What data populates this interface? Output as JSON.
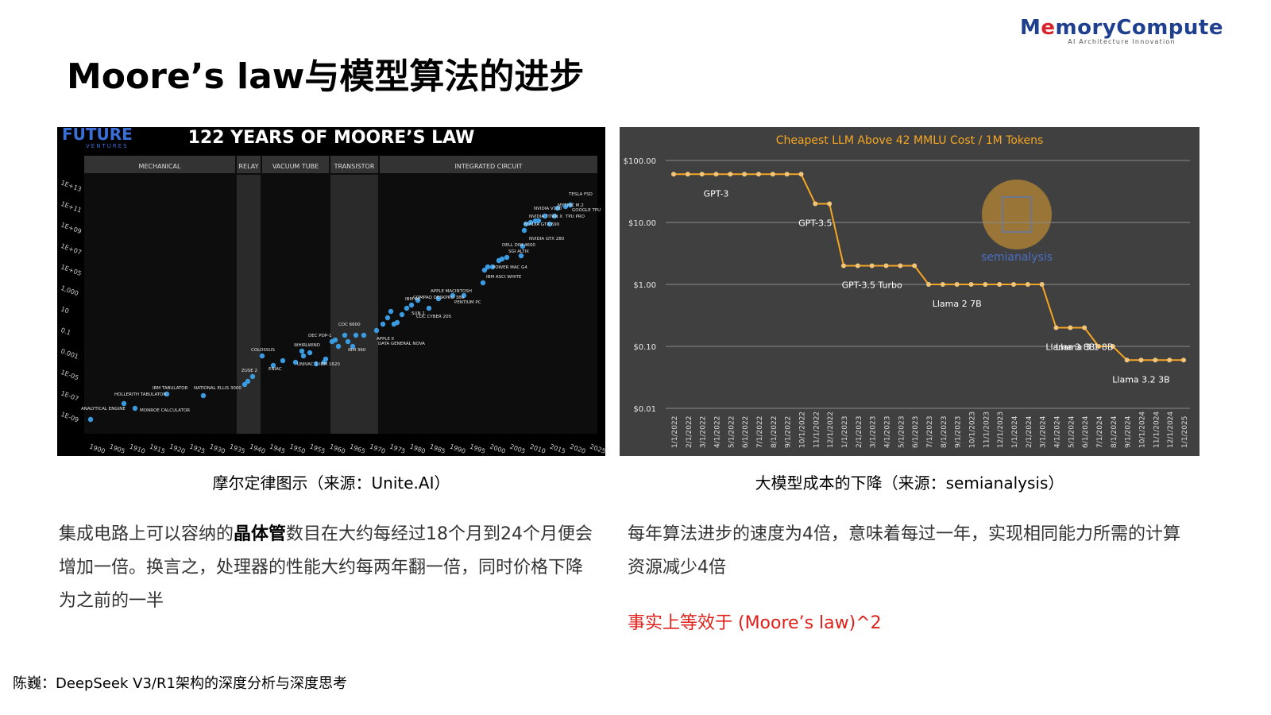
{
  "logo": {
    "prefix": "M",
    "accent": "e",
    "rest": "moryCompute",
    "tagline": "AI Architecture Innovation"
  },
  "title": "Moore’s law与模型算法的进步",
  "left_figure": {
    "brand": "FUTURE",
    "brand_sub": "VENTURES",
    "heading": "122 YEARS OF MOORE’S LAW",
    "eras": [
      "MECHANICAL",
      "RELAY",
      "VACUUM TUBE",
      "TRANSISTOR",
      "INTEGRATED CIRCUIT"
    ],
    "y_ticks": [
      "1E+13",
      "1E+11",
      "1E+09",
      "1E+07",
      "1E+05",
      "1,000",
      "10",
      "0.1",
      "0.001",
      "1E-05",
      "1E-07",
      "1E-09"
    ],
    "x_ticks": [
      "1900",
      "1905",
      "1910",
      "1915",
      "1920",
      "1925",
      "1930",
      "1935",
      "1940",
      "1945",
      "1950",
      "1955",
      "1960",
      "1965",
      "1970",
      "1975",
      "1980",
      "1985",
      "1990",
      "1995",
      "2000",
      "2005",
      "2010",
      "2015",
      "2020",
      "2025"
    ],
    "labels": [
      "ANALYTICAL ENGINE",
      "HOLLERITH TABULATOR",
      "MONROE CALCULATOR",
      "IBM TABULATOR",
      "NATIONAL ELLIS 3000",
      "ZUSE 2",
      "COLOSSUS",
      "ENIAC",
      "WHIRLWIND",
      "UNIVAC 1",
      "DEC PDP-1",
      "IBM 1620",
      "CDC 6600",
      "IBM 360",
      "APPLE II",
      "DATA GENERAL NOVA",
      "IBM PC",
      "SUN 1",
      "APPLE MACINTOSH",
      "CDC CYBER 205",
      "COMPAQ DESKPRO 386",
      "PENTIUM PC",
      "IBM ASCI WHITE",
      "POWER MAC G4",
      "SGI ALTIX",
      "DELL DIM 4600",
      "NVIDIA GTX 280",
      "NVIDIA GTX 690",
      "NVIDIA TITAN X",
      "NVIDIA V100",
      "TESLA FSD",
      "GOOGLE TPU",
      "TPU PRO",
      "MYTHIC M.2"
    ]
  },
  "right_figure": {
    "chart_data": {
      "type": "line",
      "title": "Cheapest LLM Above 42 MMLU Cost / 1M Tokens",
      "y_scale": "log",
      "ylim": [
        0.01,
        100
      ],
      "y_ticks": [
        "$100.00",
        "$10.00",
        "$1.00",
        "$0.10",
        "$0.01"
      ],
      "watermark": "semianalysis",
      "color": "#f5a623",
      "categories": [
        "1/1/2022",
        "2/1/2022",
        "3/1/2022",
        "4/1/2022",
        "5/1/2022",
        "6/1/2022",
        "7/1/2022",
        "8/1/2022",
        "9/1/2022",
        "10/1/2022",
        "11/1/2022",
        "12/1/2022",
        "1/1/2023",
        "2/1/2023",
        "3/1/2023",
        "4/1/2023",
        "5/1/2023",
        "6/1/2023",
        "7/1/2023",
        "8/1/2023",
        "9/1/2023",
        "10/1/2023",
        "11/1/2023",
        "12/1/2023",
        "1/1/2024",
        "2/1/2024",
        "3/1/2024",
        "4/1/2024",
        "5/1/2024",
        "6/1/2024",
        "7/1/2024",
        "8/1/2024",
        "9/1/2024",
        "10/1/2024",
        "11/1/2024",
        "12/1/2024",
        "1/1/2025"
      ],
      "values": [
        60,
        60,
        60,
        60,
        60,
        60,
        60,
        60,
        60,
        60,
        20,
        20,
        2,
        2,
        2,
        2,
        2,
        2,
        1,
        1,
        1,
        1,
        1,
        1,
        1,
        1,
        1,
        0.2,
        0.2,
        0.2,
        0.1,
        0.1,
        0.06,
        0.06,
        0.06,
        0.06,
        0.06
      ],
      "annotations": [
        {
          "text": "GPT-3",
          "index": 3
        },
        {
          "text": "GPT-3.5",
          "index": 10
        },
        {
          "text": "GPT-3.5 Turbo",
          "index": 14
        },
        {
          "text": "Llama 2 7B",
          "index": 20
        },
        {
          "text": "Llama 3 8B",
          "index": 28
        },
        {
          "text": "Llama 3.1 8B",
          "index": 29
        },
        {
          "text": "Llama 3.2 3B",
          "index": 33
        }
      ]
    }
  },
  "captions": {
    "left": "摩尔定律图示（来源：Unite.AI）",
    "right": "大模型成本的下降（来源：semianalysis）"
  },
  "paragraphs": {
    "left_part1": "集成电路上可以容纳的",
    "left_highlight": "晶体管",
    "left_part2": "数目在大约每经过18个月到24个月便会增加一倍。换言之，处理器的性能大约每两年翻一倍，同时价格下降为之前的一半",
    "right": "每年算法进步的速度为4倍，意味着每过一年，实现相同能力所需的计算资源减少4倍"
  },
  "red_note": "事实上等效于 (Moore’s law)^2",
  "footer": "陈巍：DeepSeek V3/R1架构的深度分析与深度思考"
}
